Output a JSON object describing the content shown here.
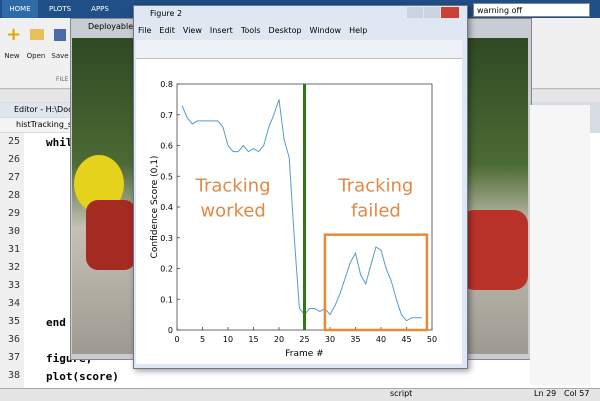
{
  "toolstrip": {
    "tabs": [
      "HOME",
      "PLOTS",
      "APPS"
    ],
    "buttons": [
      "New",
      "Open",
      "Save"
    ],
    "section": "FILE",
    "search": "warning off"
  },
  "editor": {
    "title": "Editor - H:\\Docum",
    "file_tab": "histTracking_start",
    "line_numbers": [
      "25",
      "26",
      "27",
      "28",
      "29",
      "30",
      "31",
      "32",
      "33",
      "34",
      "35",
      "36",
      "37",
      "38"
    ],
    "code": {
      "line25": "whil",
      "line35": "end",
      "line37": "figure;",
      "line38": "plot(score)"
    }
  },
  "background_window": {
    "title": "Deployable V"
  },
  "figure": {
    "title": "Figure 2",
    "menu": [
      "File",
      "Edit",
      "View",
      "Insert",
      "Tools",
      "Desktop",
      "Window",
      "Help"
    ]
  },
  "status": {
    "mode": "script",
    "line": "Ln 29",
    "col": "Col 57"
  },
  "chart_data": {
    "type": "line",
    "xlabel": "Frame #",
    "ylabel": "Confidence Score (0,1)",
    "x": [
      1,
      2,
      3,
      4,
      5,
      6,
      7,
      8,
      9,
      10,
      11,
      12,
      13,
      14,
      15,
      16,
      17,
      18,
      19,
      20,
      21,
      22,
      23,
      24,
      25,
      26,
      27,
      28,
      29,
      30,
      31,
      32,
      33,
      34,
      35,
      36,
      37,
      38,
      39,
      40,
      41,
      42,
      43,
      44,
      45,
      46,
      47,
      48
    ],
    "series": [
      {
        "color": "#5a9ac8",
        "values": [
          0.73,
          0.69,
          0.67,
          0.68,
          0.68,
          0.68,
          0.68,
          0.68,
          0.66,
          0.6,
          0.58,
          0.58,
          0.6,
          0.58,
          0.59,
          0.58,
          0.6,
          0.66,
          0.7,
          0.75,
          0.62,
          0.56,
          0.3,
          0.07,
          0.05,
          0.07,
          0.07,
          0.06,
          0.07,
          0.05,
          0.08,
          0.12,
          0.17,
          0.22,
          0.25,
          0.18,
          0.15,
          0.21,
          0.27,
          0.26,
          0.2,
          0.16,
          0.1,
          0.05,
          0.03,
          0.04,
          0.04,
          0.04
        ]
      }
    ],
    "xlim": [
      0,
      50
    ],
    "xticks": [
      0,
      5,
      10,
      15,
      20,
      25,
      30,
      35,
      40,
      45,
      50
    ],
    "ylim": [
      0,
      0.8
    ],
    "yticks": [
      0,
      0.1,
      0.2,
      0.3,
      0.4,
      0.5,
      0.6,
      0.7,
      0.8
    ],
    "vline": {
      "x": 25,
      "color": "#2e7a12"
    },
    "highlight": {
      "xlim": [
        29,
        49
      ],
      "ylim": [
        0,
        0.31
      ],
      "color": "#e8883a"
    },
    "annotations": [
      {
        "lines": [
          "Tracking",
          "worked"
        ],
        "x": 11,
        "y": 0.45,
        "color": "#e08a45"
      },
      {
        "lines": [
          "Tracking",
          "failed"
        ],
        "x": 39,
        "y": 0.45,
        "color": "#e08a45"
      }
    ]
  }
}
